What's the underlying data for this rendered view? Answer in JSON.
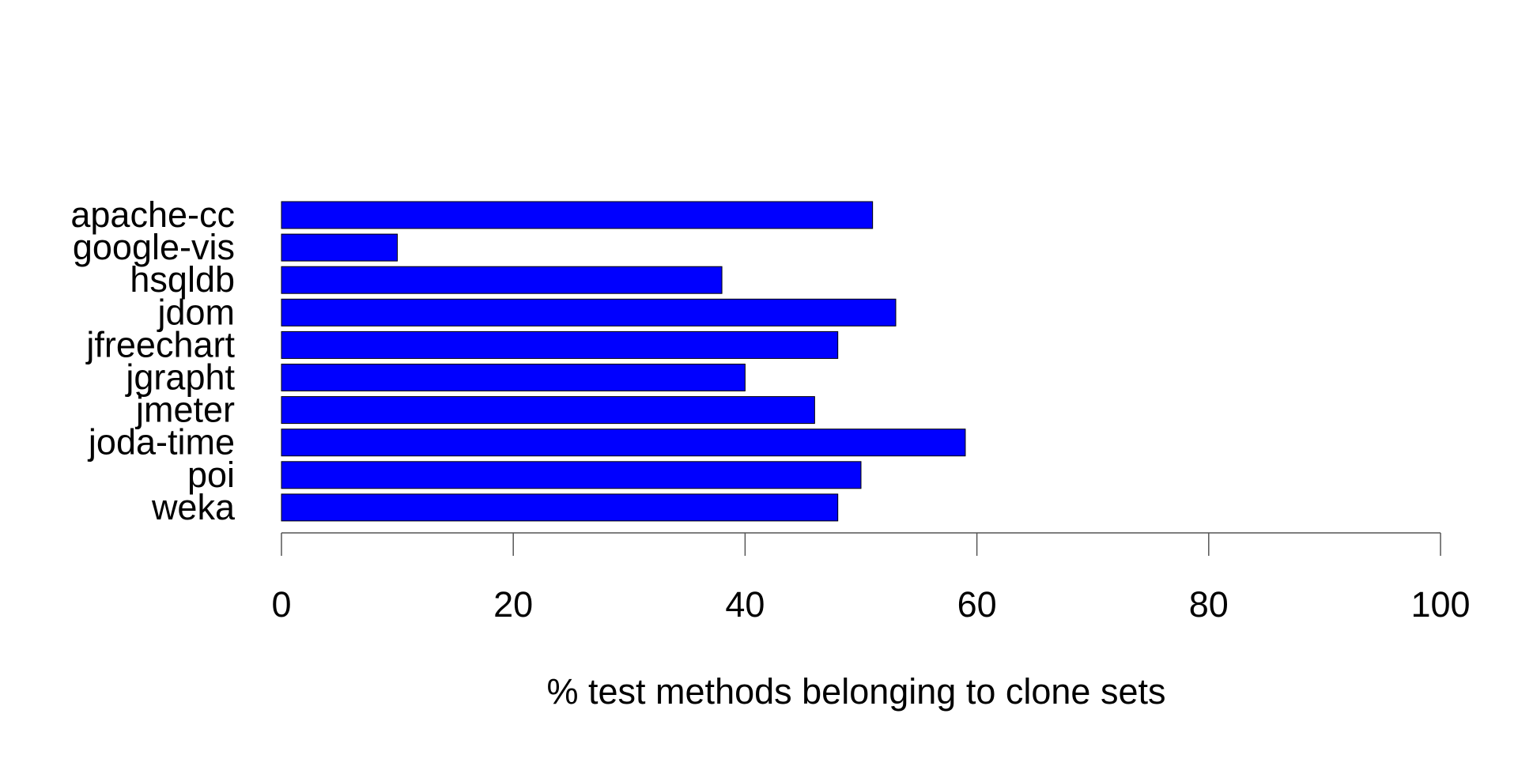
{
  "chart_data": {
    "type": "bar",
    "orientation": "horizontal",
    "categories": [
      "apache-cc",
      "google-vis",
      "hsqldb",
      "jdom",
      "jfreechart",
      "jgrapht",
      "jmeter",
      "joda-time",
      "poi",
      "weka"
    ],
    "values": [
      51,
      10,
      38,
      53,
      48,
      40,
      46,
      59,
      50,
      48
    ],
    "xlabel": "% test methods belonging to clone sets",
    "ylabel": "",
    "xlim": [
      0,
      100
    ],
    "xticks": [
      0,
      20,
      40,
      60,
      80,
      100
    ],
    "grid": false,
    "bar_color": "#0000ff",
    "bar_border_color": "#000000"
  }
}
